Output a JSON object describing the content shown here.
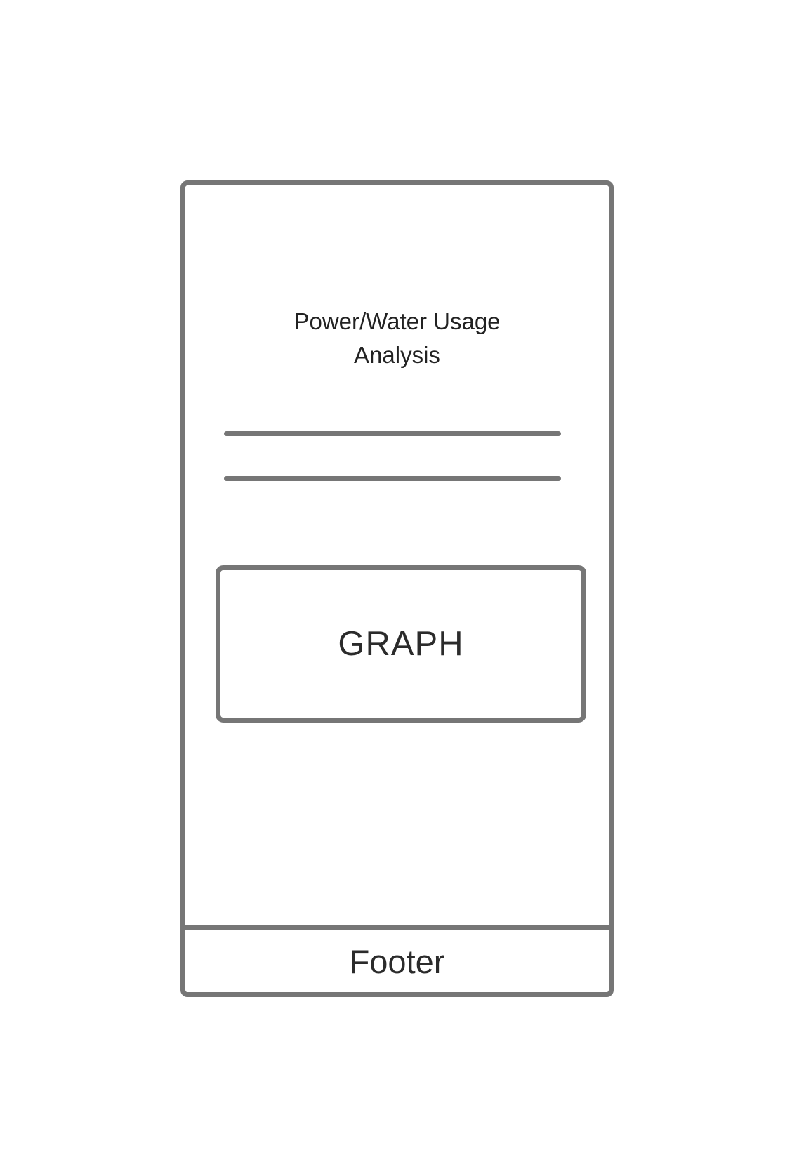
{
  "page": {
    "title_line_1": "Power/Water Usage",
    "title_line_2": "Analysis"
  },
  "graph": {
    "label": "GRAPH"
  },
  "footer": {
    "label": "Footer"
  },
  "colors": {
    "outline": "#767676",
    "text": "#2a2a2a",
    "background": "#ffffff"
  }
}
